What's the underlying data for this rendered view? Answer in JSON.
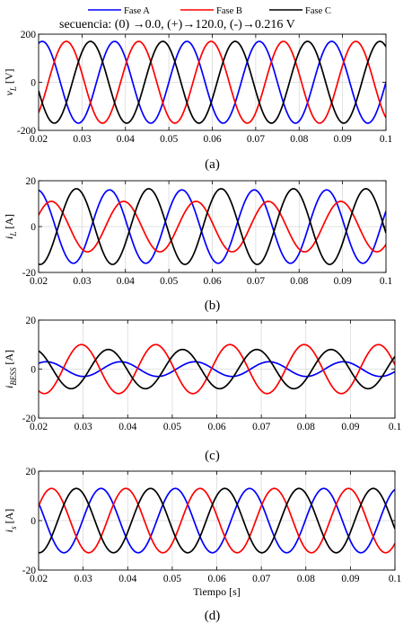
{
  "legend": {
    "entries": [
      {
        "label": "Fase A",
        "color": "#0000ff"
      },
      {
        "label": "Fase B",
        "color": "#ff0000"
      },
      {
        "label": "Fase C",
        "color": "#000000"
      }
    ]
  },
  "subtitle": "secuencia: (0) →0.0, (+)→120.0, (-)→0.216 V",
  "chart_data": [
    {
      "type": "line",
      "caption": "(a)",
      "ylabel": "v_L [V]",
      "ylabel_main": "v",
      "ylabel_sub": "L",
      "ylabel_unit": " [V]",
      "xlim": [
        0.02,
        0.1
      ],
      "ylim": [
        -200,
        200
      ],
      "yticks": [
        -200,
        0,
        200
      ],
      "xticks": [
        0.02,
        0.03,
        0.04,
        0.05,
        0.06,
        0.07,
        0.08,
        0.09,
        0.1
      ],
      "xtick_labels": [
        "0.02",
        "0.03",
        "0.04",
        "0.05",
        "0.06",
        "0.07",
        "0.08",
        "0.09",
        "0.1"
      ],
      "grid": true,
      "frequency_hz": 60,
      "series": [
        {
          "name": "Fase A",
          "color": "#0000ff",
          "amplitude": 170,
          "phase_deg": 0
        },
        {
          "name": "Fase B",
          "color": "#ff0000",
          "amplitude": 170,
          "phase_deg": -120
        },
        {
          "name": "Fase C",
          "color": "#000000",
          "amplitude": 170,
          "phase_deg": 120
        }
      ]
    },
    {
      "type": "line",
      "caption": "(b)",
      "ylabel": "i_L [A]",
      "ylabel_main": "i",
      "ylabel_sub": "L",
      "ylabel_unit": " [A]",
      "xlim": [
        0.02,
        0.1
      ],
      "ylim": [
        -20,
        20
      ],
      "yticks": [
        -20,
        0,
        20
      ],
      "xticks": [
        0.02,
        0.03,
        0.04,
        0.05,
        0.06,
        0.07,
        0.08,
        0.09,
        0.1
      ],
      "xtick_labels": [
        "0.02",
        "0.03",
        "0.04",
        "0.05",
        "0.06",
        "0.07",
        "0.08",
        "0.09",
        "0.1"
      ],
      "grid": true,
      "frequency_hz": 60,
      "series": [
        {
          "name": "Fase A",
          "color": "#0000ff",
          "amplitude": 16,
          "phase_deg": 25
        },
        {
          "name": "Fase B",
          "color": "#ff0000",
          "amplitude": 11,
          "phase_deg": -45
        },
        {
          "name": "Fase C",
          "color": "#000000",
          "amplitude": 16.5,
          "phase_deg": -170
        }
      ]
    },
    {
      "type": "line",
      "caption": "(c)",
      "ylabel": "i_BESS [A]",
      "ylabel_main": "i",
      "ylabel_sub": "BESS",
      "ylabel_unit": " [A]",
      "xlim": [
        0.02,
        0.1
      ],
      "ylim": [
        -20,
        20
      ],
      "yticks": [
        -20,
        0,
        20
      ],
      "xticks": [
        0.02,
        0.03,
        0.04,
        0.05,
        0.06,
        0.07,
        0.08,
        0.09,
        0.1
      ],
      "xtick_labels": [
        "0.02",
        "0.03",
        "0.04",
        "0.05",
        "0.06",
        "0.07",
        "0.08",
        "0.09",
        "0.1"
      ],
      "grid": true,
      "frequency_hz": 60,
      "series": [
        {
          "name": "Fase A",
          "color": "#0000ff",
          "amplitude": 3,
          "phase_deg": -20
        },
        {
          "name": "Fase B",
          "color": "#ff0000",
          "amplitude": 10,
          "phase_deg": 170
        },
        {
          "name": "Fase C",
          "color": "#000000",
          "amplitude": 8,
          "phase_deg": 40
        }
      ]
    },
    {
      "type": "line",
      "caption": "(d)",
      "ylabel": "i_s [A]",
      "ylabel_main": "i",
      "ylabel_sub": "s",
      "ylabel_unit": " [A]",
      "xlabel": "Tiempo [s]",
      "xlim": [
        0.02,
        0.1
      ],
      "ylim": [
        -20,
        20
      ],
      "yticks": [
        -20,
        0,
        20
      ],
      "xticks": [
        0.02,
        0.03,
        0.04,
        0.05,
        0.06,
        0.07,
        0.08,
        0.09,
        0.1
      ],
      "xtick_labels": [
        "0.02",
        "0.03",
        "0.04",
        "0.05",
        "0.06",
        "0.07",
        "0.08",
        "0.09",
        "0.1"
      ],
      "grid": true,
      "frequency_hz": 60,
      "series": [
        {
          "name": "Fase A",
          "color": "#0000ff",
          "amplitude": 13,
          "phase_deg": 75
        },
        {
          "name": "Fase B",
          "color": "#ff0000",
          "amplitude": 13,
          "phase_deg": -45
        },
        {
          "name": "Fase C",
          "color": "#000000",
          "amplitude": 13,
          "phase_deg": -165
        }
      ]
    }
  ]
}
